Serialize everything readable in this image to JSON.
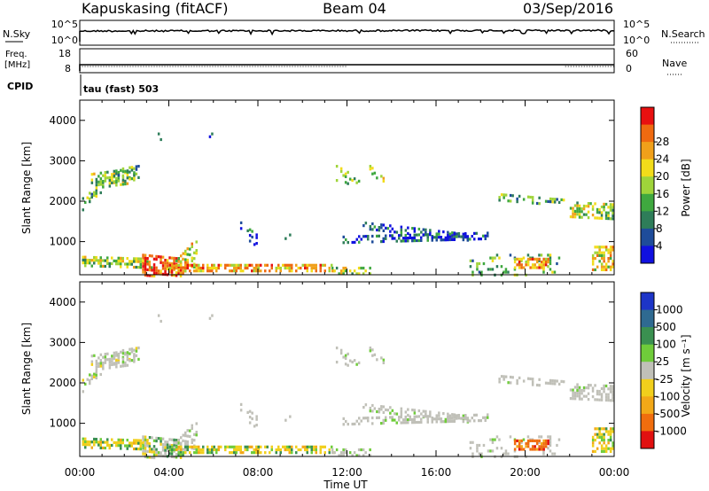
{
  "header": {
    "site": "Kapuskasing (fitACF)",
    "beam": "Beam 04",
    "date": "03/Sep/2016"
  },
  "aux_panels": {
    "nsky": {
      "label": "N.Sky",
      "ticks": [
        "10^5",
        "10^0"
      ]
    },
    "nsearch": {
      "label": "N.Search",
      "ticks": [
        "10^5",
        "10^0"
      ]
    },
    "freq": {
      "label_line1": "Freq.",
      "label_line2": "[MHz]",
      "ticks": [
        "18",
        "8"
      ]
    },
    "nave": {
      "label": "Nave",
      "ticks": [
        "60",
        "0"
      ]
    },
    "cpid": {
      "label": "CPID",
      "value": "tau (fast) 503"
    }
  },
  "chart_data": [
    {
      "type": "heatmap",
      "panel": "power",
      "xlabel": "",
      "ylabel": "Slant Range [km]",
      "xlim": [
        0,
        24
      ],
      "ylim": [
        180,
        4500
      ],
      "yticks": [
        "1000",
        "2000",
        "3000",
        "4000"
      ],
      "colorbar": {
        "label": "Power [dB]",
        "ticks": [
          "4",
          "8",
          "12",
          "16",
          "20",
          "24",
          "28"
        ],
        "colors": [
          "#1010e0",
          "#1e4c9a",
          "#2e7d59",
          "#3fa83f",
          "#9fd43a",
          "#f2dc1a",
          "#f0a01a",
          "#ef6a10",
          "#e81010"
        ]
      }
    },
    {
      "type": "heatmap",
      "panel": "velocity",
      "xlabel": "Time UT",
      "ylabel": "Slant Range [km]",
      "xlim": [
        0,
        24
      ],
      "ylim": [
        180,
        4500
      ],
      "xticks": [
        "00:00",
        "04:00",
        "08:00",
        "12:00",
        "16:00",
        "20:00",
        "00:00"
      ],
      "yticks": [
        "1000",
        "2000",
        "3000",
        "4000"
      ],
      "colorbar": {
        "label": "Velocity [m s⁻¹]",
        "ticks": [
          "1000",
          "500",
          "100",
          "25",
          "-25",
          "-100",
          "-500",
          "-1000"
        ],
        "colors": [
          "#1d35c8",
          "#2f6a91",
          "#3a9050",
          "#6fcc3a",
          "#c0c0b8",
          "#f1cf1c",
          "#f2a818",
          "#f06d0e",
          "#e11010"
        ]
      }
    }
  ]
}
